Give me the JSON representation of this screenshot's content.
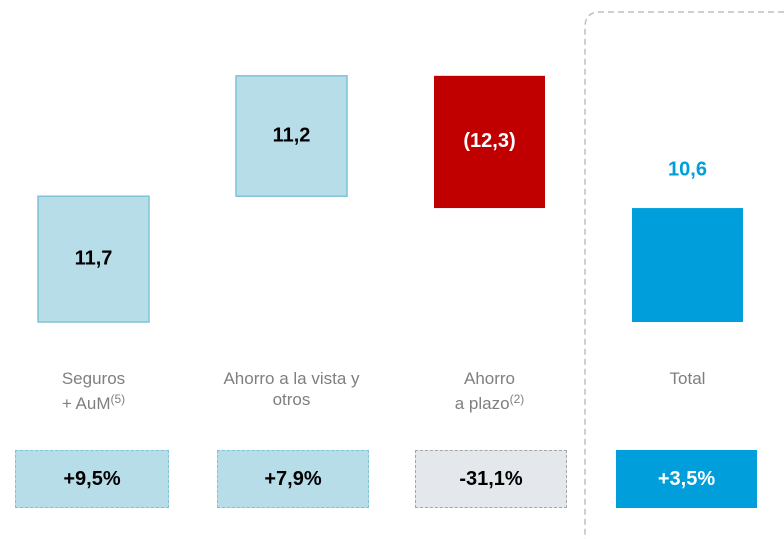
{
  "chart_data": {
    "type": "waterfall",
    "categories": [
      [
        "Seguros",
        "+ AuM"
      ],
      [
        "Ahorro a la vista y",
        "otros"
      ],
      [
        "Ahorro",
        "a plazo"
      ],
      [
        "Total"
      ]
    ],
    "category_notes": [
      "(5)",
      null,
      "(2)",
      null
    ],
    "values": [
      11.7,
      11.2,
      -12.3,
      10.6
    ],
    "value_labels": [
      "11,7",
      "11,2",
      "(12,3)",
      "10,6"
    ],
    "is_total": [
      false,
      false,
      false,
      true
    ],
    "colors": {
      "increase": "#b7dde8",
      "decrease": "#c00000",
      "total": "#009fdb"
    },
    "changes": [
      "+9,5%",
      "+7,9%",
      "-31,1%",
      "+3,5%"
    ]
  }
}
